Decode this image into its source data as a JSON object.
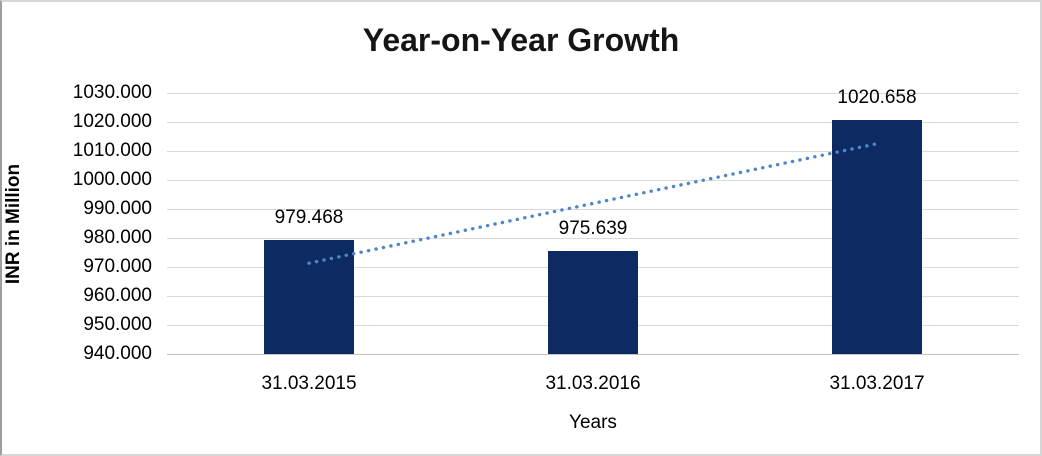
{
  "window": {
    "background": "#ffffff",
    "frame_border_color": "#d6d6d6"
  },
  "chart_data": {
    "type": "bar",
    "title": "Year-on-Year Growth",
    "xlabel": "Years",
    "ylabel": "INR in Million",
    "categories": [
      "31.03.2015",
      "31.03.2016",
      "31.03.2017"
    ],
    "values": [
      979.468,
      975.639,
      1020.658
    ],
    "data_labels": [
      "979.468",
      "975.639",
      "1020.658"
    ],
    "ylim": [
      940,
      1030
    ],
    "ytick_step": 10,
    "ytick_labels": [
      "1030.000",
      "1020.000",
      "1010.000",
      "1000.000",
      "990.000",
      "980.000",
      "970.000",
      "960.000",
      "950.000",
      "940.000"
    ],
    "grid": true,
    "legend": "none",
    "trendline": {
      "kind": "linear",
      "style": "dotted",
      "color": "#4f86c6"
    },
    "colors": {
      "bar": "#0d2b62",
      "gridline": "#d9d9d9",
      "axis_line": "#c3c3c3",
      "text": "#000000",
      "title_text": "#151515"
    }
  }
}
